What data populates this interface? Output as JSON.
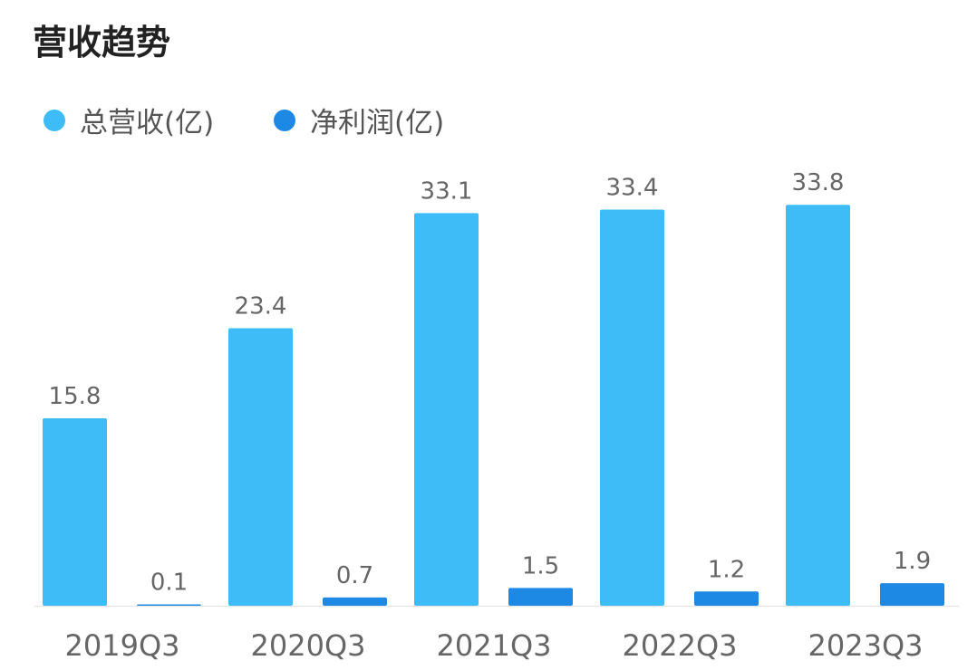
{
  "title": "营收趋势",
  "colors": {
    "revenue": "#3dbcf7",
    "profit": "#1e88e5"
  },
  "chart_data": {
    "type": "bar",
    "title": "营收趋势",
    "categories": [
      "2019Q3",
      "2020Q3",
      "2021Q3",
      "2022Q3",
      "2023Q3"
    ],
    "series": [
      {
        "name": "总营收(亿)",
        "values": [
          15.8,
          23.4,
          33.1,
          33.4,
          33.8
        ]
      },
      {
        "name": "净利润(亿)",
        "values": [
          0.1,
          0.7,
          1.5,
          1.2,
          1.9
        ]
      }
    ],
    "ylim": [
      0,
      35
    ],
    "grid": false,
    "legend": "top-left"
  }
}
